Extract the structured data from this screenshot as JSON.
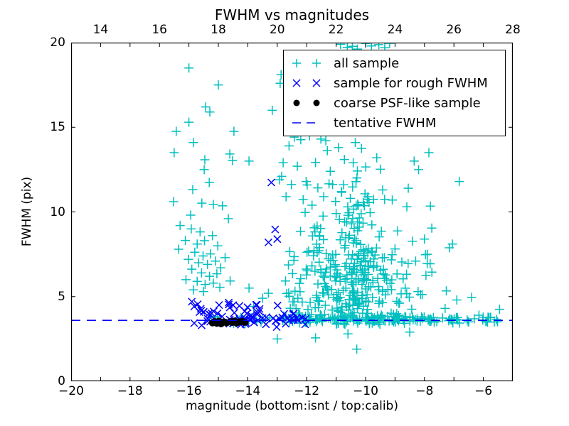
{
  "chart_data": {
    "type": "scatter",
    "title": "FWHM vs magnitudes",
    "xlabel": "magnitude (bottom:isnt / top:calib)",
    "ylabel": "FWHM (pix)",
    "xlim": [
      -20,
      -5
    ],
    "ylim": [
      0,
      20
    ],
    "grid": false,
    "colors": {
      "cyan": "#00bfbf",
      "blue": "#0000ff",
      "black": "#000000",
      "axis": "#000000",
      "background": "#ffffff"
    },
    "x_ticks_bottom": {
      "values": [
        -20,
        -18,
        -16,
        -14,
        -12,
        -10,
        -8,
        -6
      ],
      "labels": [
        "−20",
        "−18",
        "−16",
        "−14",
        "−12",
        "−10",
        "−8",
        "−6"
      ]
    },
    "x_ticks_top": {
      "lim": [
        13,
        28
      ],
      "values": [
        14,
        16,
        18,
        20,
        22,
        24,
        26,
        28
      ],
      "labels": [
        "14",
        "16",
        "18",
        "20",
        "22",
        "24",
        "26",
        "28"
      ]
    },
    "y_ticks": {
      "values": [
        0,
        5,
        10,
        15,
        20
      ],
      "labels": [
        "0",
        "5",
        "10",
        "15",
        "20"
      ]
    },
    "legend": {
      "position": "upper right",
      "entries": [
        {
          "label": "all sample",
          "marker": "plus",
          "color": "#00bfbf"
        },
        {
          "label": "sample for rough FWHM",
          "marker": "x",
          "color": "#0000ff"
        },
        {
          "label": "coarse PSF-like sample",
          "marker": "dot",
          "color": "#000000"
        },
        {
          "label": "tentative FWHM",
          "marker": "dash",
          "color": "#0000ff"
        }
      ]
    },
    "tentative_fwhm_value": 3.6,
    "series": [
      {
        "name": "all sample",
        "marker": "plus",
        "color": "#00bfbf",
        "points": [
          [
            -16.0,
            18.5
          ],
          [
            -15.0,
            17.5
          ],
          [
            -15.43,
            16.2
          ],
          [
            -15.29,
            15.9
          ],
          [
            -16.0,
            15.3
          ],
          [
            -16.43,
            14.76
          ],
          [
            -14.47,
            14.76
          ],
          [
            -15.85,
            14.1
          ],
          [
            -16.5,
            13.5
          ],
          [
            -14.61,
            13.42
          ],
          [
            -14.52,
            13.04
          ],
          [
            -13.96,
            13.0
          ],
          [
            -15.46,
            13.08
          ],
          [
            -15.48,
            12.5
          ],
          [
            -15.31,
            11.74
          ],
          [
            -15.87,
            11.32
          ],
          [
            -16.52,
            10.61
          ],
          [
            -15.56,
            10.52
          ],
          [
            -15.17,
            10.44
          ],
          [
            -14.86,
            10.36
          ],
          [
            -15.94,
            9.81
          ],
          [
            -14.66,
            9.6
          ],
          [
            -16.3,
            9.2
          ],
          [
            -15.92,
            9.0
          ],
          [
            -15.62,
            8.82
          ],
          [
            -15.2,
            8.6
          ],
          [
            -16.12,
            8.32
          ],
          [
            -15.72,
            8.1
          ],
          [
            -15.47,
            8.3
          ],
          [
            -15.02,
            8.0
          ],
          [
            -16.35,
            7.8
          ],
          [
            -15.8,
            7.62
          ],
          [
            -15.52,
            7.4
          ],
          [
            -15.27,
            7.52
          ],
          [
            -16.02,
            7.2
          ],
          [
            -15.67,
            7.0
          ],
          [
            -15.37,
            6.9
          ],
          [
            -15.1,
            7.1
          ],
          [
            -15.9,
            6.62
          ],
          [
            -15.57,
            6.4
          ],
          [
            -15.3,
            6.2
          ],
          [
            -16.1,
            6.0
          ],
          [
            -15.72,
            5.9
          ],
          [
            -15.45,
            5.72
          ],
          [
            -15.17,
            5.8
          ],
          [
            -15.85,
            5.4
          ],
          [
            -15.5,
            5.3
          ],
          [
            -14.92,
            6.7
          ],
          [
            -14.77,
            7.3
          ],
          [
            -14.6,
            5.92
          ],
          [
            -14.95,
            5.55
          ],
          [
            -15.05,
            6.35
          ],
          [
            -12.87,
            18.1
          ],
          [
            -12.9,
            17.6
          ],
          [
            -13.17,
            16.0
          ],
          [
            -12.85,
            12.1
          ],
          [
            -12.2,
            14.27
          ],
          [
            -11.35,
            14.2
          ],
          [
            -10.35,
            14.1
          ],
          [
            -12.42,
            14.42
          ],
          [
            -10.85,
            19.9
          ],
          [
            -10.62,
            19.72
          ],
          [
            -10.0,
            19.95
          ],
          [
            -9.8,
            19.8
          ],
          [
            -9.55,
            19.88
          ],
          [
            -9.35,
            19.7
          ],
          [
            -9.18,
            19.96
          ],
          [
            -10.28,
            19.62
          ],
          [
            -10.45,
            19.78
          ],
          [
            -12.6,
            13.9
          ],
          [
            -11.9,
            14.5
          ],
          [
            -11.52,
            14.3
          ],
          [
            -11.3,
            13.62
          ],
          [
            -10.92,
            13.8
          ],
          [
            -12.8,
            12.9
          ],
          [
            -12.32,
            12.7
          ],
          [
            -11.7,
            12.92
          ],
          [
            -11.2,
            12.4
          ],
          [
            -10.72,
            13.1
          ],
          [
            -10.42,
            12.9
          ],
          [
            -9.62,
            13.2
          ],
          [
            -9.5,
            12.52
          ],
          [
            -12.92,
            11.9
          ],
          [
            -12.52,
            11.62
          ],
          [
            -12.02,
            11.8
          ],
          [
            -11.62,
            11.42
          ],
          [
            -11.12,
            11.62
          ],
          [
            -10.82,
            11.2
          ],
          [
            -9.42,
            11.3
          ],
          [
            -12.7,
            10.9
          ],
          [
            -12.12,
            10.72
          ],
          [
            -11.82,
            10.4
          ],
          [
            -11.42,
            10.9
          ],
          [
            -11.02,
            10.62
          ],
          [
            -10.52,
            10.8
          ],
          [
            -9.92,
            10.9
          ],
          [
            -6.82,
            11.8
          ],
          [
            -7.85,
            13.5
          ],
          [
            -8.35,
            13.0
          ],
          [
            -8.2,
            12.5
          ],
          [
            -8.55,
            11.4
          ],
          [
            -8.6,
            10.3
          ],
          [
            -7.8,
            10.35
          ],
          [
            -7.75,
            9.05
          ],
          [
            -8.0,
            8.4
          ],
          [
            -7.05,
            8.1
          ],
          [
            -7.9,
            7.5
          ],
          [
            -8.3,
            7.1
          ],
          [
            -7.95,
            6.25
          ],
          [
            -6.9,
            4.8
          ],
          [
            -6.4,
            4.95
          ],
          [
            -7.3,
            4.3
          ],
          [
            -5.45,
            4.25
          ],
          [
            -6.15,
            3.9
          ],
          [
            -5.75,
            3.78
          ],
          [
            -6.55,
            3.62
          ],
          [
            -5.9,
            3.55
          ],
          [
            -13.0,
            2.5
          ],
          [
            -10.3,
            1.9
          ],
          [
            -10.6,
            2.8
          ],
          [
            -11.7,
            2.56
          ],
          [
            -8.5,
            2.9
          ],
          [
            -13.96,
            5.5
          ],
          [
            -13.5,
            4.9
          ],
          [
            -13.8,
            4.42
          ],
          [
            -13.3,
            5.2
          ]
        ],
        "clusters": [
          {
            "seed": 11,
            "count": 170,
            "cx": -10.2,
            "cy": 5.2,
            "sx": 1.05,
            "sy": 1.5,
            "xmin": -12.7,
            "xmax": -6.8,
            "ymin": 3.5,
            "ymax": 11.0
          },
          {
            "seed": 22,
            "count": 100,
            "cx": -10.35,
            "cy": 7.0,
            "sx": 0.4,
            "sy": 2.4,
            "xmin": -11.2,
            "xmax": -9.5,
            "ymin": 3.6,
            "ymax": 13.8
          },
          {
            "seed": 33,
            "count": 120,
            "xu": [
              -12.9,
              -7.6
            ],
            "cy": 3.62,
            "sy": 0.13,
            "ymin": 3.35,
            "ymax": 4.0
          },
          {
            "seed": 44,
            "count": 26,
            "xu": [
              -7.6,
              -5.5
            ],
            "cy": 3.62,
            "sy": 0.1,
            "ymin": 3.4,
            "ymax": 3.85
          },
          {
            "seed": 55,
            "count": 16,
            "xu": [
              -15.3,
              -12.9
            ],
            "cy": 3.6,
            "sy": 0.12,
            "ymin": 3.35,
            "ymax": 3.9
          },
          {
            "seed": 66,
            "count": 36,
            "cx": -11.9,
            "cy": 5.3,
            "sx": 0.55,
            "sy": 1.5,
            "xmin": -12.8,
            "xmax": -11.0,
            "ymin": 3.6,
            "ymax": 9.5
          },
          {
            "seed": 77,
            "count": 30,
            "cx": -10.8,
            "cy": 9.8,
            "sx": 1.0,
            "sy": 1.5,
            "xmin": -12.8,
            "xmax": -8.6,
            "ymin": 7.5,
            "ymax": 13.9
          }
        ]
      },
      {
        "name": "sample for rough FWHM",
        "marker": "x",
        "color": "#0000ff",
        "points": [
          [
            -13.07,
            8.97
          ],
          [
            -13.0,
            8.4
          ],
          [
            -13.3,
            8.2
          ],
          [
            -13.2,
            11.74
          ],
          [
            -15.9,
            4.7
          ],
          [
            -15.82,
            4.42
          ],
          [
            -15.6,
            4.28
          ],
          [
            -15.7,
            4.55
          ],
          [
            -15.5,
            4.1
          ],
          [
            -12.5,
            3.72
          ],
          [
            -12.3,
            3.6
          ],
          [
            -12.15,
            3.76
          ]
        ],
        "clusters": [
          {
            "seed": 88,
            "count": 60,
            "cx": -14.35,
            "cy": 3.9,
            "sx": 0.8,
            "sy": 0.38,
            "xmin": -15.95,
            "xmax": -12.2,
            "ymin": 3.05,
            "ymax": 5.0
          },
          {
            "seed": 99,
            "count": 12,
            "xu": [
              -13.4,
              -12.0
            ],
            "cy": 3.7,
            "sy": 0.2,
            "ymin": 3.3,
            "ymax": 4.2
          }
        ]
      },
      {
        "name": "coarse PSF-like sample",
        "marker": "dot",
        "color": "#000000",
        "points": [
          [
            -15.2,
            3.45
          ],
          [
            -15.12,
            3.52
          ],
          [
            -15.05,
            3.42
          ],
          [
            -14.98,
            3.55
          ],
          [
            -14.9,
            3.4
          ],
          [
            -14.82,
            3.5
          ],
          [
            -14.72,
            3.45
          ],
          [
            -14.6,
            3.52
          ],
          [
            -14.52,
            3.48
          ],
          [
            -14.45,
            3.56
          ],
          [
            -14.38,
            3.44
          ],
          [
            -14.3,
            3.5
          ],
          [
            -14.2,
            3.53
          ],
          [
            -14.1,
            3.48
          ]
        ],
        "clusters": []
      },
      {
        "name": "tentative FWHM",
        "marker": "dash",
        "color": "#0000ff",
        "hline_y": 3.6
      }
    ]
  }
}
